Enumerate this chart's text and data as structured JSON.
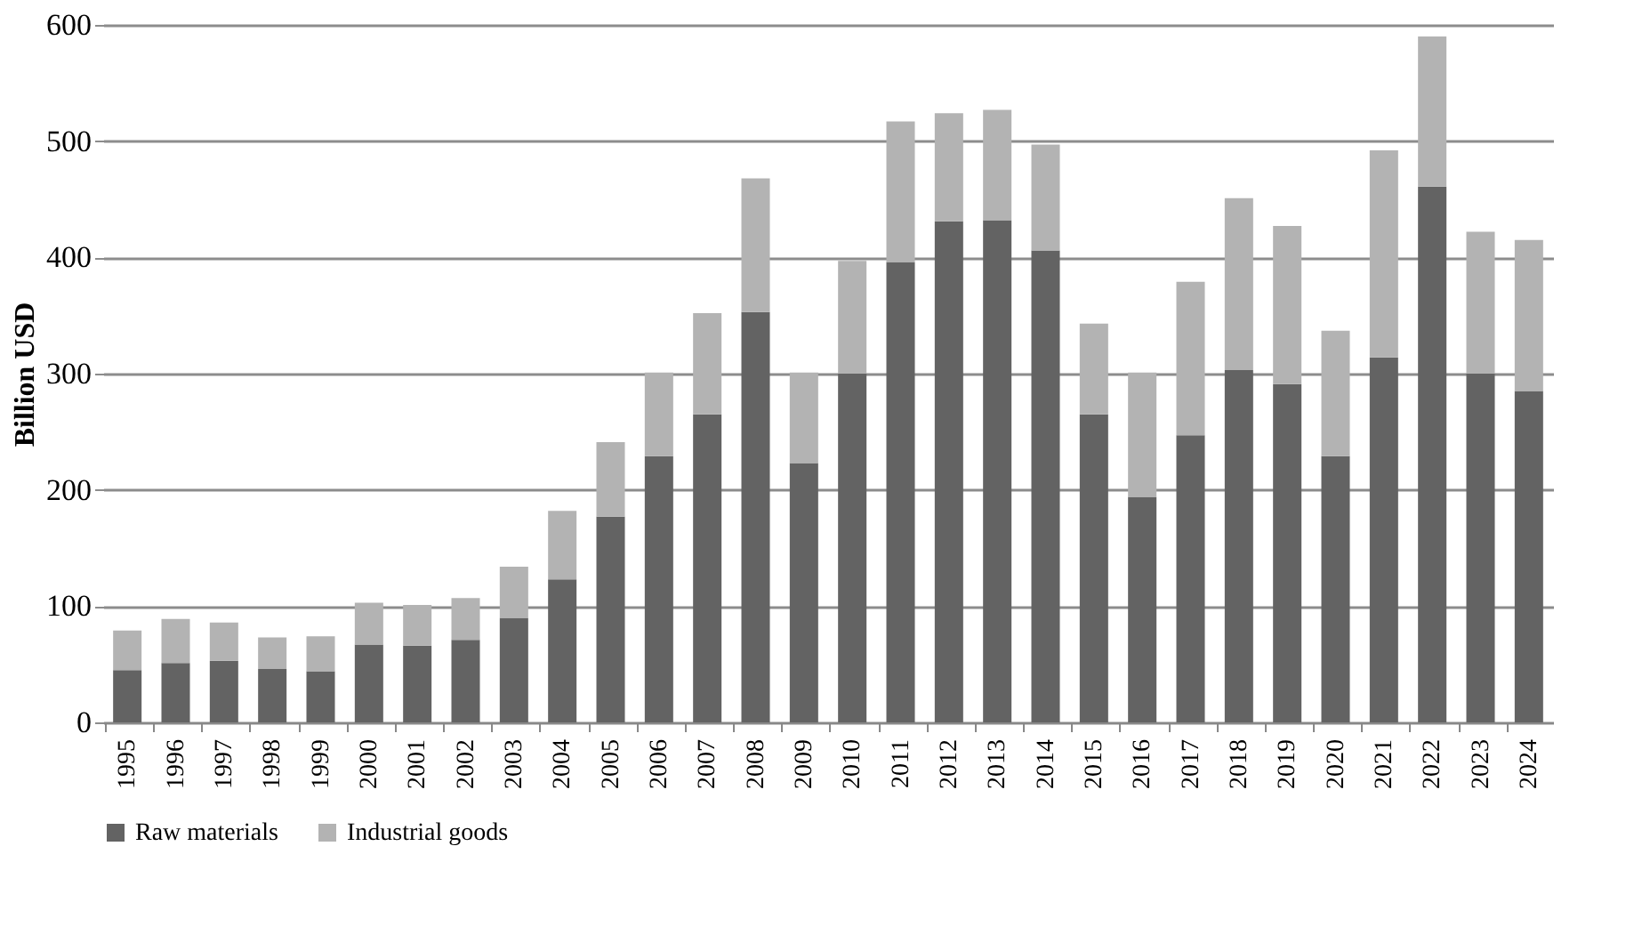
{
  "chart_data": {
    "type": "bar",
    "stacked": true,
    "ylabel": "Billion USD",
    "categories": [
      "1995",
      "1996",
      "1997",
      "1998",
      "1999",
      "2000",
      "2001",
      "2002",
      "2003",
      "2004",
      "2005",
      "2006",
      "2007",
      "2008",
      "2009",
      "2010",
      "2011",
      "2012",
      "2013",
      "2014",
      "2015",
      "2016",
      "2017",
      "2018",
      "2019",
      "2020",
      "2021",
      "2022",
      "2023",
      "2024"
    ],
    "series": [
      {
        "name": "Raw materials",
        "color": "#636363",
        "values": [
          45,
          51,
          53,
          46,
          44,
          67,
          66,
          71,
          90,
          123,
          177,
          229,
          265,
          353,
          223,
          300,
          396,
          431,
          432,
          406,
          265,
          194,
          247,
          303,
          291,
          229,
          314,
          461,
          300,
          285
        ]
      },
      {
        "name": "Industrial goods",
        "color": "#b3b3b3",
        "values": [
          34,
          38,
          33,
          27,
          30,
          36,
          35,
          36,
          44,
          59,
          64,
          72,
          87,
          115,
          78,
          97,
          121,
          93,
          95,
          91,
          78,
          107,
          132,
          148,
          136,
          108,
          178,
          129,
          122,
          130
        ]
      }
    ],
    "ylim": [
      0,
      600
    ],
    "yticks": [
      0,
      100,
      200,
      300,
      400,
      500,
      600
    ],
    "grid": "y",
    "legend": "bottom"
  }
}
